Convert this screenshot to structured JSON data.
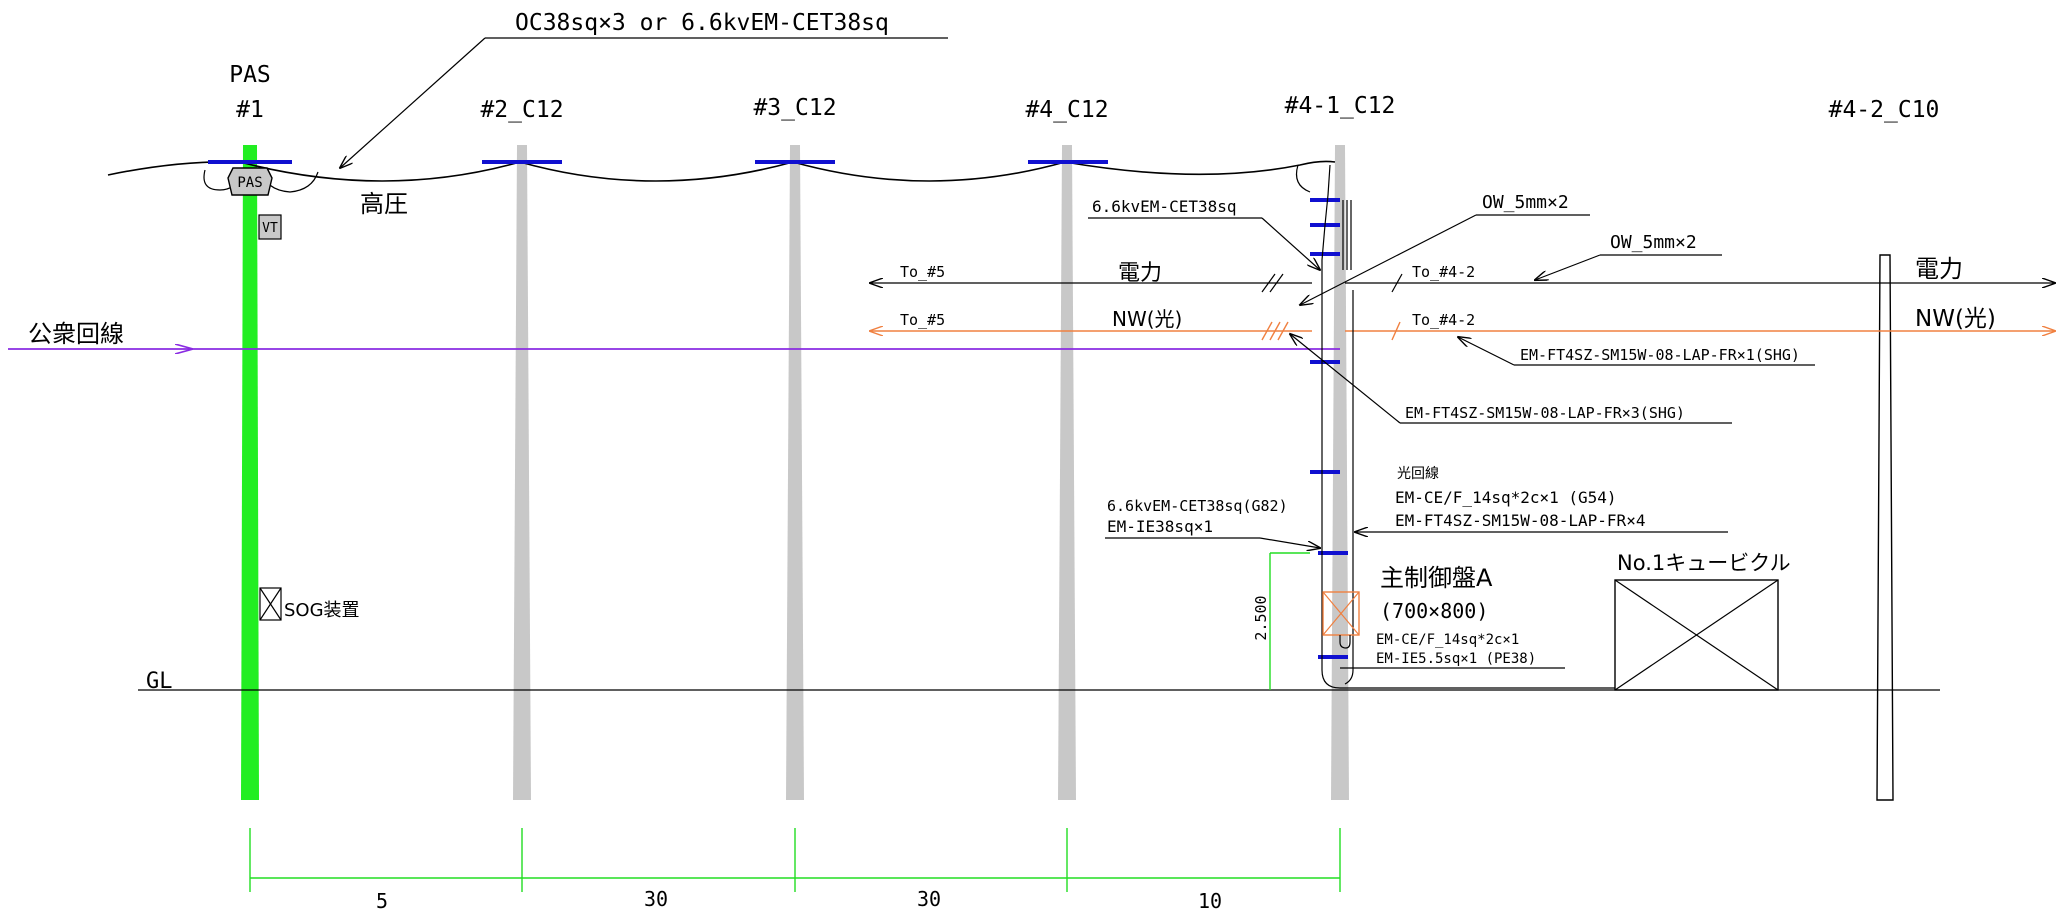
{
  "colors": {
    "pole": "#c8c8c8",
    "pas_pole": "#22ee22",
    "dimension": "#22dd22",
    "public_line": "#8a2be2",
    "optical_line": "#f08040",
    "crossarm": "#1010d0",
    "box": "#f08040"
  },
  "labels": {
    "top_cable": "OC38sq×3 or 6.6kvEM-CET38sq",
    "pas_title": "PAS",
    "pole1": "#1",
    "pole2": "#2_C12",
    "pole3": "#3_C12",
    "pole4": "#4_C12",
    "pole41": "#4-1_C12",
    "pole42": "#4-2_C10",
    "pas_box": "PAS",
    "vt_box": "VT",
    "high_voltage": "高圧",
    "public_line": "公衆回線",
    "gl": "GL",
    "sog": "SOG装置",
    "cable_cet": "6.6kvEM-CET38sq",
    "ow1": "OW_5mm×2",
    "ow2": "OW_5mm×2",
    "to5_power": "To_#5",
    "to42_power": "To_#4-2",
    "power_mid": "電力",
    "power_right": "電力",
    "to5_nw": "To_#5",
    "to42_nw": "To_#4-2",
    "nw_mid": "NW(光)",
    "nw_right": "NW(光)",
    "fiber_x1": "EM-FT4SZ-SM15W-08-LAP-FR×1(SHG)",
    "fiber_x3": "EM-FT4SZ-SM15W-08-LAP-FR×3(SHG)",
    "optical_circuit_title": "光回線",
    "optical_circuit_1": "EM-CE/F_14sq*2c×1 (G54)",
    "optical_circuit_2": "EM-FT4SZ-SM15W-08-LAP-FR×4",
    "drop_cable_1": "6.6kvEM-CET38sq(G82)",
    "drop_cable_2": "EM-IE38sq×1",
    "height_dim": "2.500",
    "panel_title": "主制御盤A",
    "panel_size": "(700×800)",
    "cubicle": "No.1キュービクル",
    "panel_cable_1": "EM-CE/F_14sq*2c×1",
    "panel_cable_2": "EM-IE5.5sq×1   (PE38)",
    "span_1": "5",
    "span_2": "30",
    "span_3": "30",
    "span_4": "10"
  }
}
